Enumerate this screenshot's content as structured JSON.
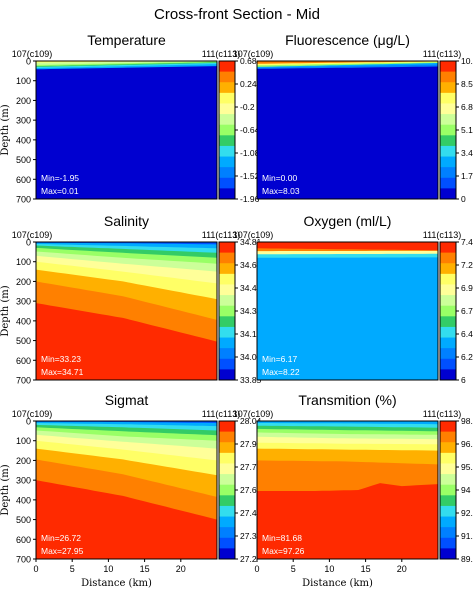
{
  "figure": {
    "title": "Cross-front Section - Mid"
  },
  "chart_data": [
    {
      "type": "heatmap",
      "title": "Temperature",
      "left_label": "107(c109)",
      "right_label": "111(c113)",
      "ylabel": "Depth (m)",
      "xlabel": "",
      "xlim": [
        0,
        25
      ],
      "ylim": [
        700,
        0
      ],
      "yticks": [
        "0",
        "100",
        "200",
        "300",
        "400",
        "500",
        "600",
        "700"
      ],
      "xticks": [],
      "colorbar": [
        "0.68",
        "0.24",
        "-0.2",
        "-0.64",
        "-1.08",
        "-1.52",
        "-1.96"
      ],
      "colors": [
        "#ff2a00",
        "#ff8000",
        "#ffb000",
        "#ffff66",
        "#ffff99",
        "#ccff99",
        "#99ff66",
        "#33cc66",
        "#33ddee",
        "#00aaff",
        "#0080ff",
        "#0050ff",
        "#0000d0"
      ],
      "fill_index": 12,
      "layers": [
        {
          "index": 9,
          "profile": [
            [
              0,
              42
            ],
            [
              25,
              26
            ]
          ]
        },
        {
          "index": 8,
          "profile": [
            [
              0,
              36
            ],
            [
              25,
              16
            ]
          ]
        },
        {
          "index": 7,
          "profile": [
            [
              0,
              30
            ],
            [
              25,
              10
            ]
          ]
        },
        {
          "index": 6,
          "profile": [
            [
              0,
              26
            ],
            [
              25,
              6
            ]
          ]
        },
        {
          "index": 5,
          "profile": [
            [
              0,
              20
            ],
            [
              25,
              2
            ]
          ]
        },
        {
          "index": 3,
          "profile": [
            [
              0,
              8
            ],
            [
              25,
              0
            ]
          ]
        }
      ],
      "min_label": "Min=-1.95",
      "max_label": "Max=0.01"
    },
    {
      "type": "heatmap",
      "title": "Fluorescence (μg/L)",
      "left_label": "107(c109)",
      "right_label": "111(c113)",
      "ylabel": "",
      "xlabel": "",
      "xlim": [
        0,
        25
      ],
      "ylim": [
        700,
        0
      ],
      "yticks": [],
      "xticks": [],
      "colorbar": [
        "10.2",
        "8.5",
        "6.8",
        "5.1",
        "3.4",
        "1.7",
        "0"
      ],
      "colors": [
        "#ff2a00",
        "#ff8000",
        "#ffb000",
        "#ffff66",
        "#ffff99",
        "#ccff99",
        "#99ff66",
        "#33cc66",
        "#33ddee",
        "#00aaff",
        "#0080ff",
        "#0050ff",
        "#0000d0"
      ],
      "fill_index": 12,
      "layers": [
        {
          "index": 10,
          "profile": [
            [
              0,
              40
            ],
            [
              25,
              28
            ]
          ]
        },
        {
          "index": 9,
          "profile": [
            [
              0,
              34
            ],
            [
              25,
              18
            ]
          ]
        },
        {
          "index": 6,
          "profile": [
            [
              0,
              30
            ],
            [
              25,
              10
            ]
          ]
        },
        {
          "index": 3,
          "profile": [
            [
              0,
              22
            ],
            [
              25,
              6
            ]
          ]
        },
        {
          "index": 1,
          "profile": [
            [
              0,
              14
            ],
            [
              25,
              2
            ]
          ]
        }
      ],
      "min_label": "Min=0.00",
      "max_label": "Max=8.03"
    },
    {
      "type": "heatmap",
      "title": "Salinity",
      "left_label": "107(c109)",
      "right_label": "111(c113)",
      "ylabel": "Depth (m)",
      "xlabel": "",
      "xlim": [
        0,
        25
      ],
      "ylim": [
        700,
        0
      ],
      "yticks": [
        "0",
        "100",
        "200",
        "300",
        "400",
        "500",
        "600",
        "700"
      ],
      "xticks": [],
      "colorbar": [
        "34.81",
        "34.65",
        "34.49",
        "34.33",
        "34.17",
        "34.01",
        "33.85"
      ],
      "colors": [
        "#ff2a00",
        "#ff8000",
        "#ffb000",
        "#ffff66",
        "#ffff99",
        "#ccff99",
        "#99ff66",
        "#33cc66",
        "#33ddee",
        "#00aaff",
        "#0080ff",
        "#0050ff",
        "#0000d0"
      ],
      "fill_index": 0,
      "layers": [
        {
          "index": 1,
          "profile": [
            [
              0,
              310
            ],
            [
              12,
              385
            ],
            [
              25,
              505
            ]
          ]
        },
        {
          "index": 2,
          "profile": [
            [
              0,
              200
            ],
            [
              12,
              275
            ],
            [
              25,
              395
            ]
          ]
        },
        {
          "index": 3,
          "profile": [
            [
              0,
              140
            ],
            [
              12,
              200
            ],
            [
              25,
              290
            ]
          ]
        },
        {
          "index": 4,
          "profile": [
            [
              0,
              100
            ],
            [
              12,
              150
            ],
            [
              25,
              210
            ]
          ]
        },
        {
          "index": 5,
          "profile": [
            [
              0,
              70
            ],
            [
              12,
              110
            ],
            [
              25,
              150
            ]
          ]
        },
        {
          "index": 6,
          "profile": [
            [
              0,
              48
            ],
            [
              12,
              80
            ],
            [
              25,
              110
            ]
          ]
        },
        {
          "index": 7,
          "profile": [
            [
              0,
              30
            ],
            [
              12,
              55
            ],
            [
              25,
              80
            ]
          ]
        },
        {
          "index": 8,
          "profile": [
            [
              0,
              18
            ],
            [
              12,
              35
            ],
            [
              25,
              55
            ]
          ]
        },
        {
          "index": 9,
          "profile": [
            [
              0,
              10
            ],
            [
              12,
              20
            ],
            [
              25,
              32
            ]
          ]
        },
        {
          "index": 11,
          "profile": [
            [
              0,
              4
            ],
            [
              12,
              6
            ],
            [
              25,
              12
            ]
          ]
        }
      ],
      "min_label": "Min=33.23",
      "max_label": "Max=34.71"
    },
    {
      "type": "heatmap",
      "title": "Oxygen (ml/L)",
      "left_label": "107(c109)",
      "right_label": "111(c113)",
      "ylabel": "",
      "xlabel": "",
      "xlim": [
        0,
        25
      ],
      "ylim": [
        700,
        0
      ],
      "yticks": [],
      "xticks": [],
      "colorbar": [
        "7.44",
        "7.2",
        "6.96",
        "6.72",
        "6.48",
        "6.24",
        "6"
      ],
      "colors": [
        "#ff2a00",
        "#ff8000",
        "#ffb000",
        "#ffff66",
        "#ffff99",
        "#ccff99",
        "#99ff66",
        "#33cc66",
        "#33ddee",
        "#00aaff",
        "#0080ff",
        "#0050ff",
        "#0000d0"
      ],
      "fill_index": 9,
      "layers": [
        {
          "index": 8,
          "profile": [
            [
              0,
              80
            ],
            [
              25,
              78
            ]
          ]
        },
        {
          "index": 4,
          "profile": [
            [
              0,
              62
            ],
            [
              25,
              60
            ]
          ]
        },
        {
          "index": 1,
          "profile": [
            [
              0,
              46
            ],
            [
              25,
              45
            ]
          ]
        },
        {
          "index": 0,
          "profile": [
            [
              0,
              32
            ],
            [
              25,
              42
            ]
          ]
        }
      ],
      "min_label": "Min=6.17",
      "max_label": "Max=8.22"
    },
    {
      "type": "heatmap",
      "title": "Sigmat",
      "left_label": "107(c109)",
      "right_label": "111(c113)",
      "ylabel": "Depth (m)",
      "xlabel": "Distance (km)",
      "xlim": [
        0,
        25
      ],
      "ylim": [
        700,
        0
      ],
      "yticks": [
        "0",
        "100",
        "200",
        "300",
        "400",
        "500",
        "600",
        "700"
      ],
      "xticks": [
        "0",
        "5",
        "10",
        "15",
        "20"
      ],
      "colorbar": [
        "28.04",
        "27.9",
        "27.76",
        "27.62",
        "27.48",
        "27.34",
        "27.2"
      ],
      "colors": [
        "#ff2a00",
        "#ff8000",
        "#ffb000",
        "#ffff66",
        "#ffff99",
        "#ccff99",
        "#99ff66",
        "#33cc66",
        "#33ddee",
        "#00aaff",
        "#0080ff",
        "#0050ff",
        "#0000d0"
      ],
      "fill_index": 0,
      "layers": [
        {
          "index": 1,
          "profile": [
            [
              0,
              300
            ],
            [
              12,
              380
            ],
            [
              25,
              500
            ]
          ]
        },
        {
          "index": 2,
          "profile": [
            [
              0,
              195
            ],
            [
              12,
              270
            ],
            [
              25,
              385
            ]
          ]
        },
        {
          "index": 3,
          "profile": [
            [
              0,
              140
            ],
            [
              12,
              195
            ],
            [
              25,
              275
            ]
          ]
        },
        {
          "index": 4,
          "profile": [
            [
              0,
              100
            ],
            [
              12,
              145
            ],
            [
              25,
              200
            ]
          ]
        },
        {
          "index": 5,
          "profile": [
            [
              0,
              70
            ],
            [
              12,
              105
            ],
            [
              25,
              140
            ]
          ]
        },
        {
          "index": 6,
          "profile": [
            [
              0,
              48
            ],
            [
              12,
              78
            ],
            [
              25,
              100
            ]
          ]
        },
        {
          "index": 7,
          "profile": [
            [
              0,
              32
            ],
            [
              12,
              52
            ],
            [
              25,
              72
            ]
          ]
        },
        {
          "index": 8,
          "profile": [
            [
              0,
              20
            ],
            [
              12,
              32
            ],
            [
              25,
              48
            ]
          ]
        },
        {
          "index": 9,
          "profile": [
            [
              0,
              10
            ],
            [
              12,
              16
            ],
            [
              25,
              26
            ]
          ]
        },
        {
          "index": 11,
          "profile": [
            [
              0,
              4
            ],
            [
              12,
              5
            ],
            [
              25,
              10
            ]
          ]
        }
      ],
      "min_label": "Min=26.72",
      "max_label": "Max=27.95"
    },
    {
      "type": "heatmap",
      "title": "Transmition (%)",
      "left_label": "107(c109)",
      "right_label": "111(c113)",
      "ylabel": "",
      "xlabel": "Distance (km)",
      "xlim": [
        0,
        25
      ],
      "ylim": [
        700,
        0
      ],
      "yticks": [],
      "xticks": [
        "0",
        "5",
        "10",
        "15",
        "20"
      ],
      "colorbar": [
        "98.2",
        "96.8",
        "95.4",
        "94",
        "92.6",
        "91.2",
        "89.8"
      ],
      "colors": [
        "#ff2a00",
        "#ff8000",
        "#ffb000",
        "#ffff66",
        "#ffff99",
        "#ccff99",
        "#99ff66",
        "#33cc66",
        "#33ddee",
        "#00aaff",
        "#0080ff",
        "#0050ff",
        "#0000d0"
      ],
      "fill_index": 0,
      "layers": [
        {
          "index": 1,
          "profile": [
            [
              0,
              355
            ],
            [
              8,
              355
            ],
            [
              14,
              350
            ],
            [
              17,
              315
            ],
            [
              20,
              330
            ],
            [
              25,
              320
            ]
          ]
        },
        {
          "index": 2,
          "profile": [
            [
              0,
              200
            ],
            [
              12,
              205
            ],
            [
              25,
              220
            ]
          ]
        },
        {
          "index": 3,
          "profile": [
            [
              0,
              140
            ],
            [
              12,
              145
            ],
            [
              25,
              150
            ]
          ]
        },
        {
          "index": 4,
          "profile": [
            [
              0,
              110
            ],
            [
              12,
              115
            ],
            [
              25,
              118
            ]
          ]
        },
        {
          "index": 5,
          "profile": [
            [
              0,
              80
            ],
            [
              12,
              88
            ],
            [
              25,
              92
            ]
          ]
        },
        {
          "index": 6,
          "profile": [
            [
              0,
              58
            ],
            [
              12,
              66
            ],
            [
              25,
              70
            ]
          ]
        },
        {
          "index": 7,
          "profile": [
            [
              0,
              40
            ],
            [
              12,
              46
            ],
            [
              25,
              52
            ]
          ]
        },
        {
          "index": 8,
          "profile": [
            [
              0,
              24
            ],
            [
              12,
              28
            ],
            [
              25,
              34
            ]
          ]
        },
        {
          "index": 9,
          "profile": [
            [
              0,
              10
            ],
            [
              12,
              12
            ],
            [
              25,
              16
            ]
          ]
        }
      ],
      "min_label": "Min=81.68",
      "max_label": "Max=97.26"
    }
  ]
}
